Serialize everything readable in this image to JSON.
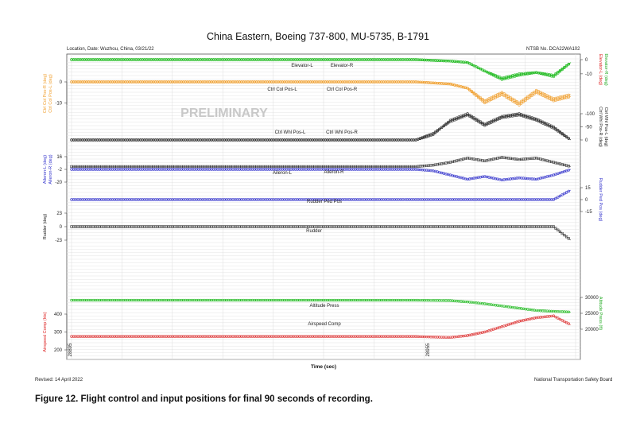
{
  "page": {
    "title": "China Eastern, Boeing 737-800, MU-5735, B-1791",
    "location": "Location, Date: Wuzhou, China, 03/21/22",
    "ntsb_no": "NTSB No. DCA22WA102",
    "revised": "Revised: 14 April 2022",
    "board": "National Transportation Safety Board",
    "caption": "Figure 12. Flight control and input positions for final 90 seconds of recording.",
    "watermark": "PRELIMINARY"
  },
  "chart_data": {
    "type": "line",
    "title": "China Eastern, Boeing 737-800, MU-5735, B-1791",
    "xlabel": "Time (sec)",
    "x_ticks": [
      "28895",
      "28955"
    ],
    "grid": true,
    "colors": {
      "green": "#22bb22",
      "orange": "#f0a030",
      "black": "#333333",
      "blue": "#3333cc",
      "red": "#dd3333",
      "darkred": "#cc2222"
    },
    "x": [
      0,
      3,
      6,
      9,
      12,
      15,
      18,
      21,
      24,
      27,
      30,
      33,
      36,
      39,
      42,
      45,
      48,
      51,
      54,
      57,
      60,
      63,
      66,
      69,
      72,
      75,
      78,
      81,
      84,
      87
    ],
    "panels": [
      {
        "name": "elevator",
        "left_axis": null,
        "right_axis": {
          "labels": [
            "Elevator-L (deg)",
            "Elevator-R (deg)"
          ],
          "colors": [
            "#dd2222",
            "#22aa22"
          ],
          "ticks": [
            "0",
            "-10"
          ],
          "tick_values": [
            0,
            -10
          ]
        },
        "series": [
          {
            "name": "Elevator-L",
            "label_text": "Elevator-L",
            "color": "#22bb22",
            "marker": "o",
            "values": [
              0,
              0,
              0,
              0,
              0,
              0,
              0,
              0,
              0,
              0,
              0,
              0,
              0,
              0,
              0,
              0,
              0,
              0,
              0,
              0,
              0,
              -0.5,
              -1,
              -2,
              -8,
              -14,
              -11,
              -9,
              -12,
              -2
            ]
          },
          {
            "name": "Elevator-R",
            "label_text": "Elevator-R",
            "color": "#22bb22",
            "marker": "o",
            "values": [
              0,
              0,
              0,
              0,
              0,
              0,
              0,
              0,
              0,
              0,
              0,
              0,
              0,
              0,
              0,
              0,
              0,
              0,
              0,
              0,
              0,
              -0.5,
              -1,
              -2,
              -8,
              -13,
              -10,
              -9,
              -11,
              -2
            ]
          }
        ]
      },
      {
        "name": "ctrl-col",
        "left_axis": {
          "labels": [
            "Ctrl Col Pos-R (deg)",
            "Ctrl Col Pos-L (deg)"
          ],
          "colors": [
            "#f0a030",
            "#f0a030"
          ],
          "ticks": [
            "0",
            "-10"
          ],
          "tick_values": [
            0,
            -10
          ]
        },
        "right_axis": null,
        "series": [
          {
            "name": "Ctrl Col Pos-L",
            "label_text": "Ctrl Col Pos-L",
            "color": "#f0a030",
            "marker": "o",
            "values": [
              0,
              0,
              0,
              0,
              0,
              0,
              0,
              0,
              0,
              0,
              0,
              0,
              0,
              0,
              0,
              0,
              0,
              0,
              0,
              0,
              0,
              -0.5,
              -1,
              -3,
              -10,
              -6,
              -11,
              -5,
              -9,
              -7
            ]
          },
          {
            "name": "Ctrl Col Pos-R",
            "label_text": "Ctrl Col Pos-R",
            "color": "#f0a030",
            "marker": "o",
            "values": [
              0,
              0,
              0,
              0,
              0,
              0,
              0,
              0,
              0,
              0,
              0,
              0,
              0,
              0,
              0,
              0,
              0,
              0,
              0,
              0,
              0,
              -0.5,
              -1,
              -3,
              -9,
              -5,
              -10,
              -4,
              -8,
              -6
            ]
          }
        ]
      },
      {
        "name": "ctrl-whl",
        "left_axis": null,
        "right_axis": {
          "labels": [
            "Ctrl Whl Pos-R (deg)",
            "Ctrl Whl Pos-L (deg)"
          ],
          "colors": [
            "#222222",
            "#222222"
          ],
          "ticks": [
            "-100",
            "-50",
            "0"
          ],
          "tick_values": [
            -100,
            -50,
            0
          ]
        },
        "series": [
          {
            "name": "Ctrl Whl Pos-L",
            "label_text": "Ctrl Whl Pos-L",
            "color": "#333333",
            "marker": "o",
            "values": [
              0,
              0,
              0,
              0,
              0,
              0,
              0,
              0,
              0,
              0,
              0,
              0,
              0,
              0,
              0,
              0,
              0,
              0,
              0,
              0,
              0,
              -20,
              -75,
              -100,
              -60,
              -90,
              -100,
              -80,
              -50,
              0
            ]
          },
          {
            "name": "Ctrl Whl Pos-R",
            "label_text": "Ctrl Whl Pos-R",
            "color": "#333333",
            "marker": "o",
            "values": [
              0,
              0,
              0,
              0,
              0,
              0,
              0,
              0,
              0,
              0,
              0,
              0,
              0,
              0,
              0,
              0,
              0,
              0,
              0,
              0,
              0,
              -25,
              -70,
              -95,
              -55,
              -85,
              -95,
              -75,
              -45,
              0
            ]
          }
        ]
      },
      {
        "name": "aileron",
        "left_axis": {
          "labels": [
            "Aileron-L (deg)",
            "Aileron-R (deg)"
          ],
          "colors": [
            "#3333cc",
            "#3333cc"
          ],
          "ticks": [
            "16",
            "-2",
            "-20"
          ],
          "tick_values": [
            16,
            -2,
            -20
          ]
        },
        "right_axis": null,
        "series": [
          {
            "name": "Aileron-L",
            "label_text": "Aileron-L",
            "color": "#333333",
            "marker": "s",
            "values": [
              2,
              2,
              2,
              2,
              2,
              2,
              2,
              2,
              2,
              2,
              2,
              2,
              2,
              2,
              2,
              2,
              2,
              2,
              2,
              2,
              2,
              4,
              8,
              14,
              10,
              15,
              12,
              14,
              8,
              2
            ]
          },
          {
            "name": "Aileron-R",
            "label_text": "Aileron-R",
            "color": "#3333cc",
            "marker": "o",
            "values": [
              -2,
              -2,
              -2,
              -2,
              -2,
              -2,
              -2,
              -2,
              -2,
              -2,
              -2,
              -2,
              -2,
              -2,
              -2,
              -2,
              -2,
              -2,
              -2,
              -2,
              -2,
              -4,
              -10,
              -16,
              -12,
              -17,
              -14,
              -16,
              -10,
              -2
            ]
          }
        ]
      },
      {
        "name": "rudder-ped",
        "left_axis": null,
        "right_axis": {
          "labels": [
            "Rudder Ped Pos (deg)"
          ],
          "colors": [
            "#3333cc"
          ],
          "ticks": [
            "15",
            "0",
            "-15"
          ],
          "tick_values": [
            15,
            0,
            -15
          ]
        },
        "series": [
          {
            "name": "Rudder Ped Pos",
            "label_text": "Rudder Ped Pos",
            "color": "#3333cc",
            "marker": "o",
            "values": [
              0,
              0,
              0,
              0,
              0,
              0,
              0,
              0,
              0,
              0,
              0,
              0,
              0,
              0,
              0,
              0,
              0,
              0,
              0,
              0,
              0,
              0,
              0,
              0,
              0,
              0,
              0,
              0,
              0,
              12
            ]
          }
        ]
      },
      {
        "name": "rudder",
        "left_axis": {
          "labels": [
            "Rudder (deg)"
          ],
          "colors": [
            "#111111"
          ],
          "ticks": [
            "23",
            "0",
            "-23"
          ],
          "tick_values": [
            23,
            0,
            -23
          ]
        },
        "right_axis": null,
        "series": [
          {
            "name": "Rudder",
            "label_text": "Rudder",
            "color": "#333333",
            "marker": "s",
            "values": [
              0,
              0,
              0,
              0,
              0,
              0,
              0,
              0,
              0,
              0,
              0,
              0,
              0,
              0,
              0,
              0,
              0,
              0,
              0,
              0,
              0,
              0,
              0,
              0,
              0,
              0,
              0,
              0,
              0,
              -23
            ]
          }
        ]
      },
      {
        "name": "altitude",
        "left_axis": null,
        "right_axis": {
          "labels": [
            "Altitude Press (ft)"
          ],
          "colors": [
            "#22aa22"
          ],
          "ticks": [
            "30000",
            "25000",
            "20000"
          ],
          "tick_values": [
            30000,
            25000,
            20000
          ]
        },
        "series": [
          {
            "name": "Altitude Press",
            "label_text": "Altitude Press",
            "color": "#22bb22",
            "marker": "o",
            "values": [
              29100,
              29100,
              29100,
              29100,
              29100,
              29100,
              29100,
              29100,
              29100,
              29100,
              29100,
              29100,
              29100,
              29100,
              29100,
              29100,
              29100,
              29100,
              29100,
              29100,
              29100,
              29050,
              29000,
              28600,
              28000,
              27300,
              26600,
              25900,
              25600,
              25400
            ]
          }
        ]
      },
      {
        "name": "airspeed",
        "left_axis": {
          "labels": [
            "Airspeed Comp (kts)"
          ],
          "colors": [
            "#dd2222"
          ],
          "ticks": [
            "400",
            "300",
            "200"
          ],
          "tick_values": [
            400,
            300,
            200
          ]
        },
        "right_axis": null,
        "series": [
          {
            "name": "Airspeed Comp",
            "label_text": "Airspeed Comp",
            "color": "#dd3333",
            "marker": "o",
            "values": [
              275,
              275,
              275,
              275,
              275,
              275,
              275,
              275,
              275,
              275,
              275,
              275,
              275,
              275,
              275,
              275,
              275,
              275,
              275,
              275,
              275,
              272,
              270,
              280,
              300,
              330,
              360,
              380,
              390,
              340
            ]
          }
        ]
      }
    ]
  }
}
